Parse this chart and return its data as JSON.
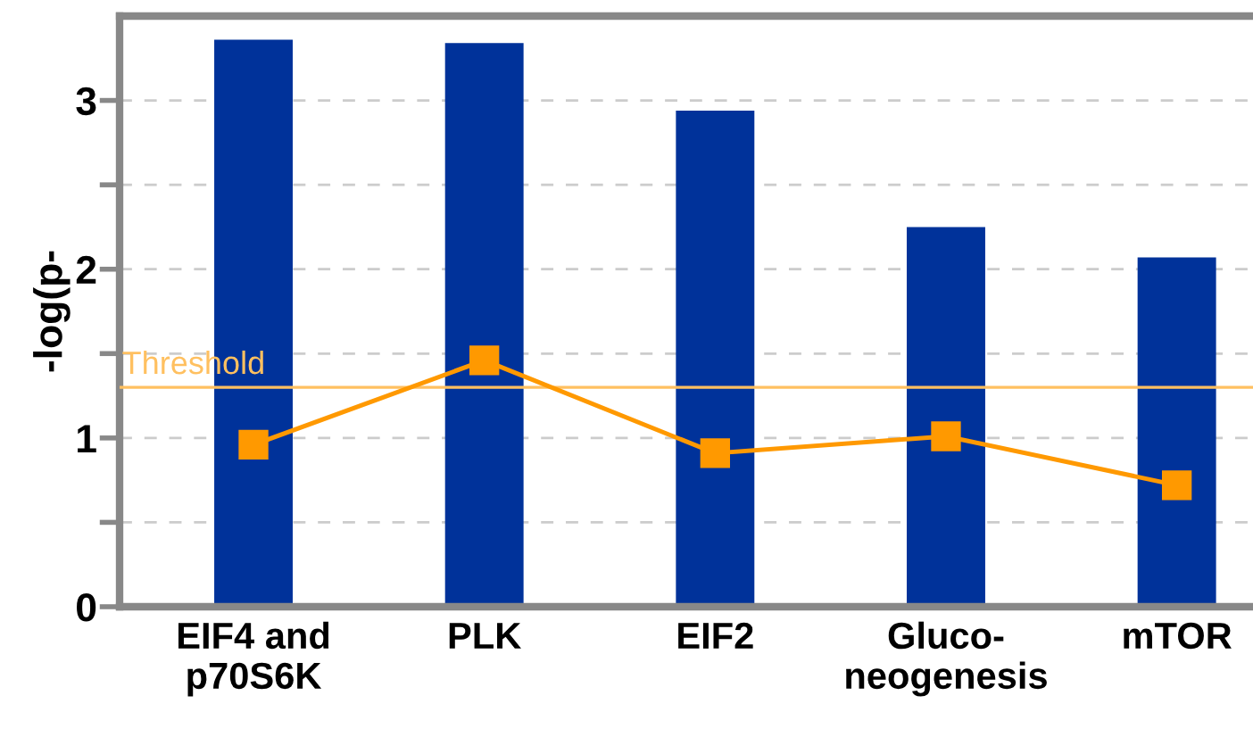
{
  "chart_data": {
    "type": "bar",
    "ylabel": "-log(p-",
    "categories": [
      "EIF4 and\np70S6K",
      "PLK",
      "EIF2",
      "Gluco-\nneogenesis",
      "mTOR"
    ],
    "series": [
      {
        "color": "#00329a",
        "values": [
          3.36,
          3.34,
          2.94,
          2.25,
          2.07
        ]
      },
      {
        "type": "line",
        "color": "#ff9900",
        "values": [
          0.96,
          1.46,
          0.91,
          1.01,
          0.72
        ],
        "marker": "square"
      }
    ],
    "ylim": [
      0,
      3.5
    ],
    "yticks": [
      0,
      {
        "value": 0.5,
        "label": null
      },
      1,
      {
        "value": 1.5,
        "label": null
      },
      2,
      {
        "value": 2.5,
        "label": null
      },
      3
    ],
    "ref_lines": [
      {
        "axis": "y",
        "value": 1.3,
        "label": "Threshold",
        "color": "#ffc060"
      }
    ],
    "grid": "y",
    "legend": false
  }
}
